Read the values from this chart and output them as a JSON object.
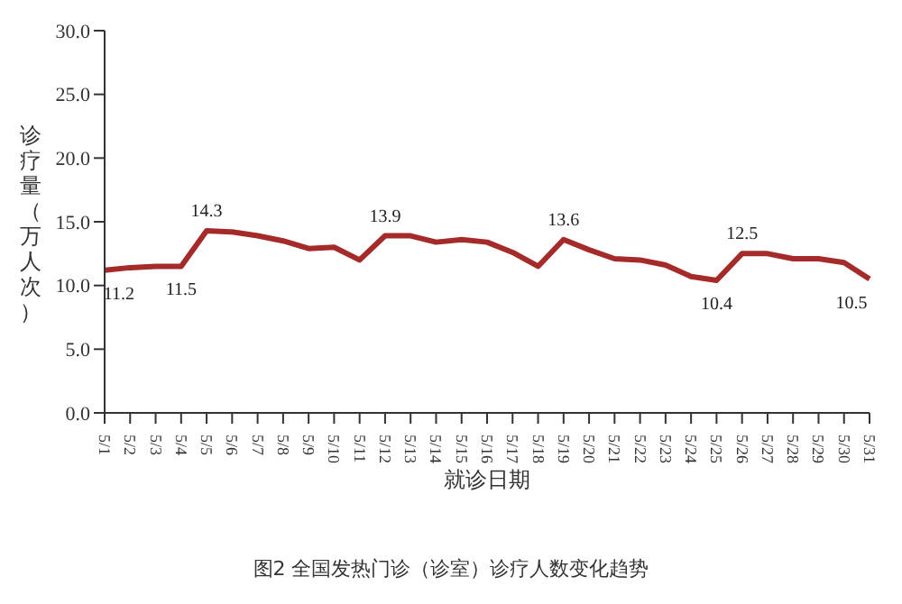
{
  "chart_data": {
    "type": "line",
    "ylabel": "诊疗量（万人次）",
    "xlabel": "就诊日期",
    "annotations": [
      "图2 全国发热门诊（诊室）诊疗人数变化趋势"
    ],
    "categories": [
      "5/1",
      "5/2",
      "5/3",
      "5/4",
      "5/5",
      "5/6",
      "5/7",
      "5/8",
      "5/9",
      "5/10",
      "5/11",
      "5/12",
      "5/13",
      "5/14",
      "5/15",
      "5/16",
      "5/17",
      "5/18",
      "5/19",
      "5/20",
      "5/21",
      "5/22",
      "5/23",
      "5/24",
      "5/25",
      "5/26",
      "5/27",
      "5/28",
      "5/29",
      "5/30",
      "5/31"
    ],
    "series": [
      {
        "color": "#a52a2a",
        "values": [
          11.2,
          11.4,
          11.5,
          11.5,
          14.3,
          14.2,
          13.9,
          13.5,
          12.9,
          13.0,
          12.0,
          13.9,
          13.9,
          13.4,
          13.6,
          13.4,
          12.6,
          11.5,
          13.6,
          12.8,
          12.1,
          12.0,
          11.6,
          10.7,
          10.4,
          12.5,
          12.5,
          12.1,
          12.1,
          11.8,
          10.5
        ],
        "value_labels": [
          "11.2",
          null,
          null,
          "11.5",
          "14.3",
          null,
          null,
          null,
          null,
          null,
          null,
          "13.9",
          null,
          null,
          null,
          null,
          null,
          null,
          "13.6",
          null,
          null,
          null,
          null,
          null,
          "10.4",
          "12.5",
          null,
          null,
          null,
          null,
          "10.5"
        ]
      }
    ],
    "ylim": [
      0,
      30
    ],
    "yticks": [
      {
        "value": 0,
        "label": "0.0"
      },
      {
        "value": 5,
        "label": "5.0"
      },
      {
        "value": 10,
        "label": "10.0"
      },
      {
        "value": 15,
        "label": "15.0"
      },
      {
        "value": 20,
        "label": "20.0"
      },
      {
        "value": 25,
        "label": "25.0"
      },
      {
        "value": 30,
        "label": "30.0"
      }
    ],
    "grid": false,
    "legend": false,
    "marker": "none",
    "line_style": "solid"
  }
}
